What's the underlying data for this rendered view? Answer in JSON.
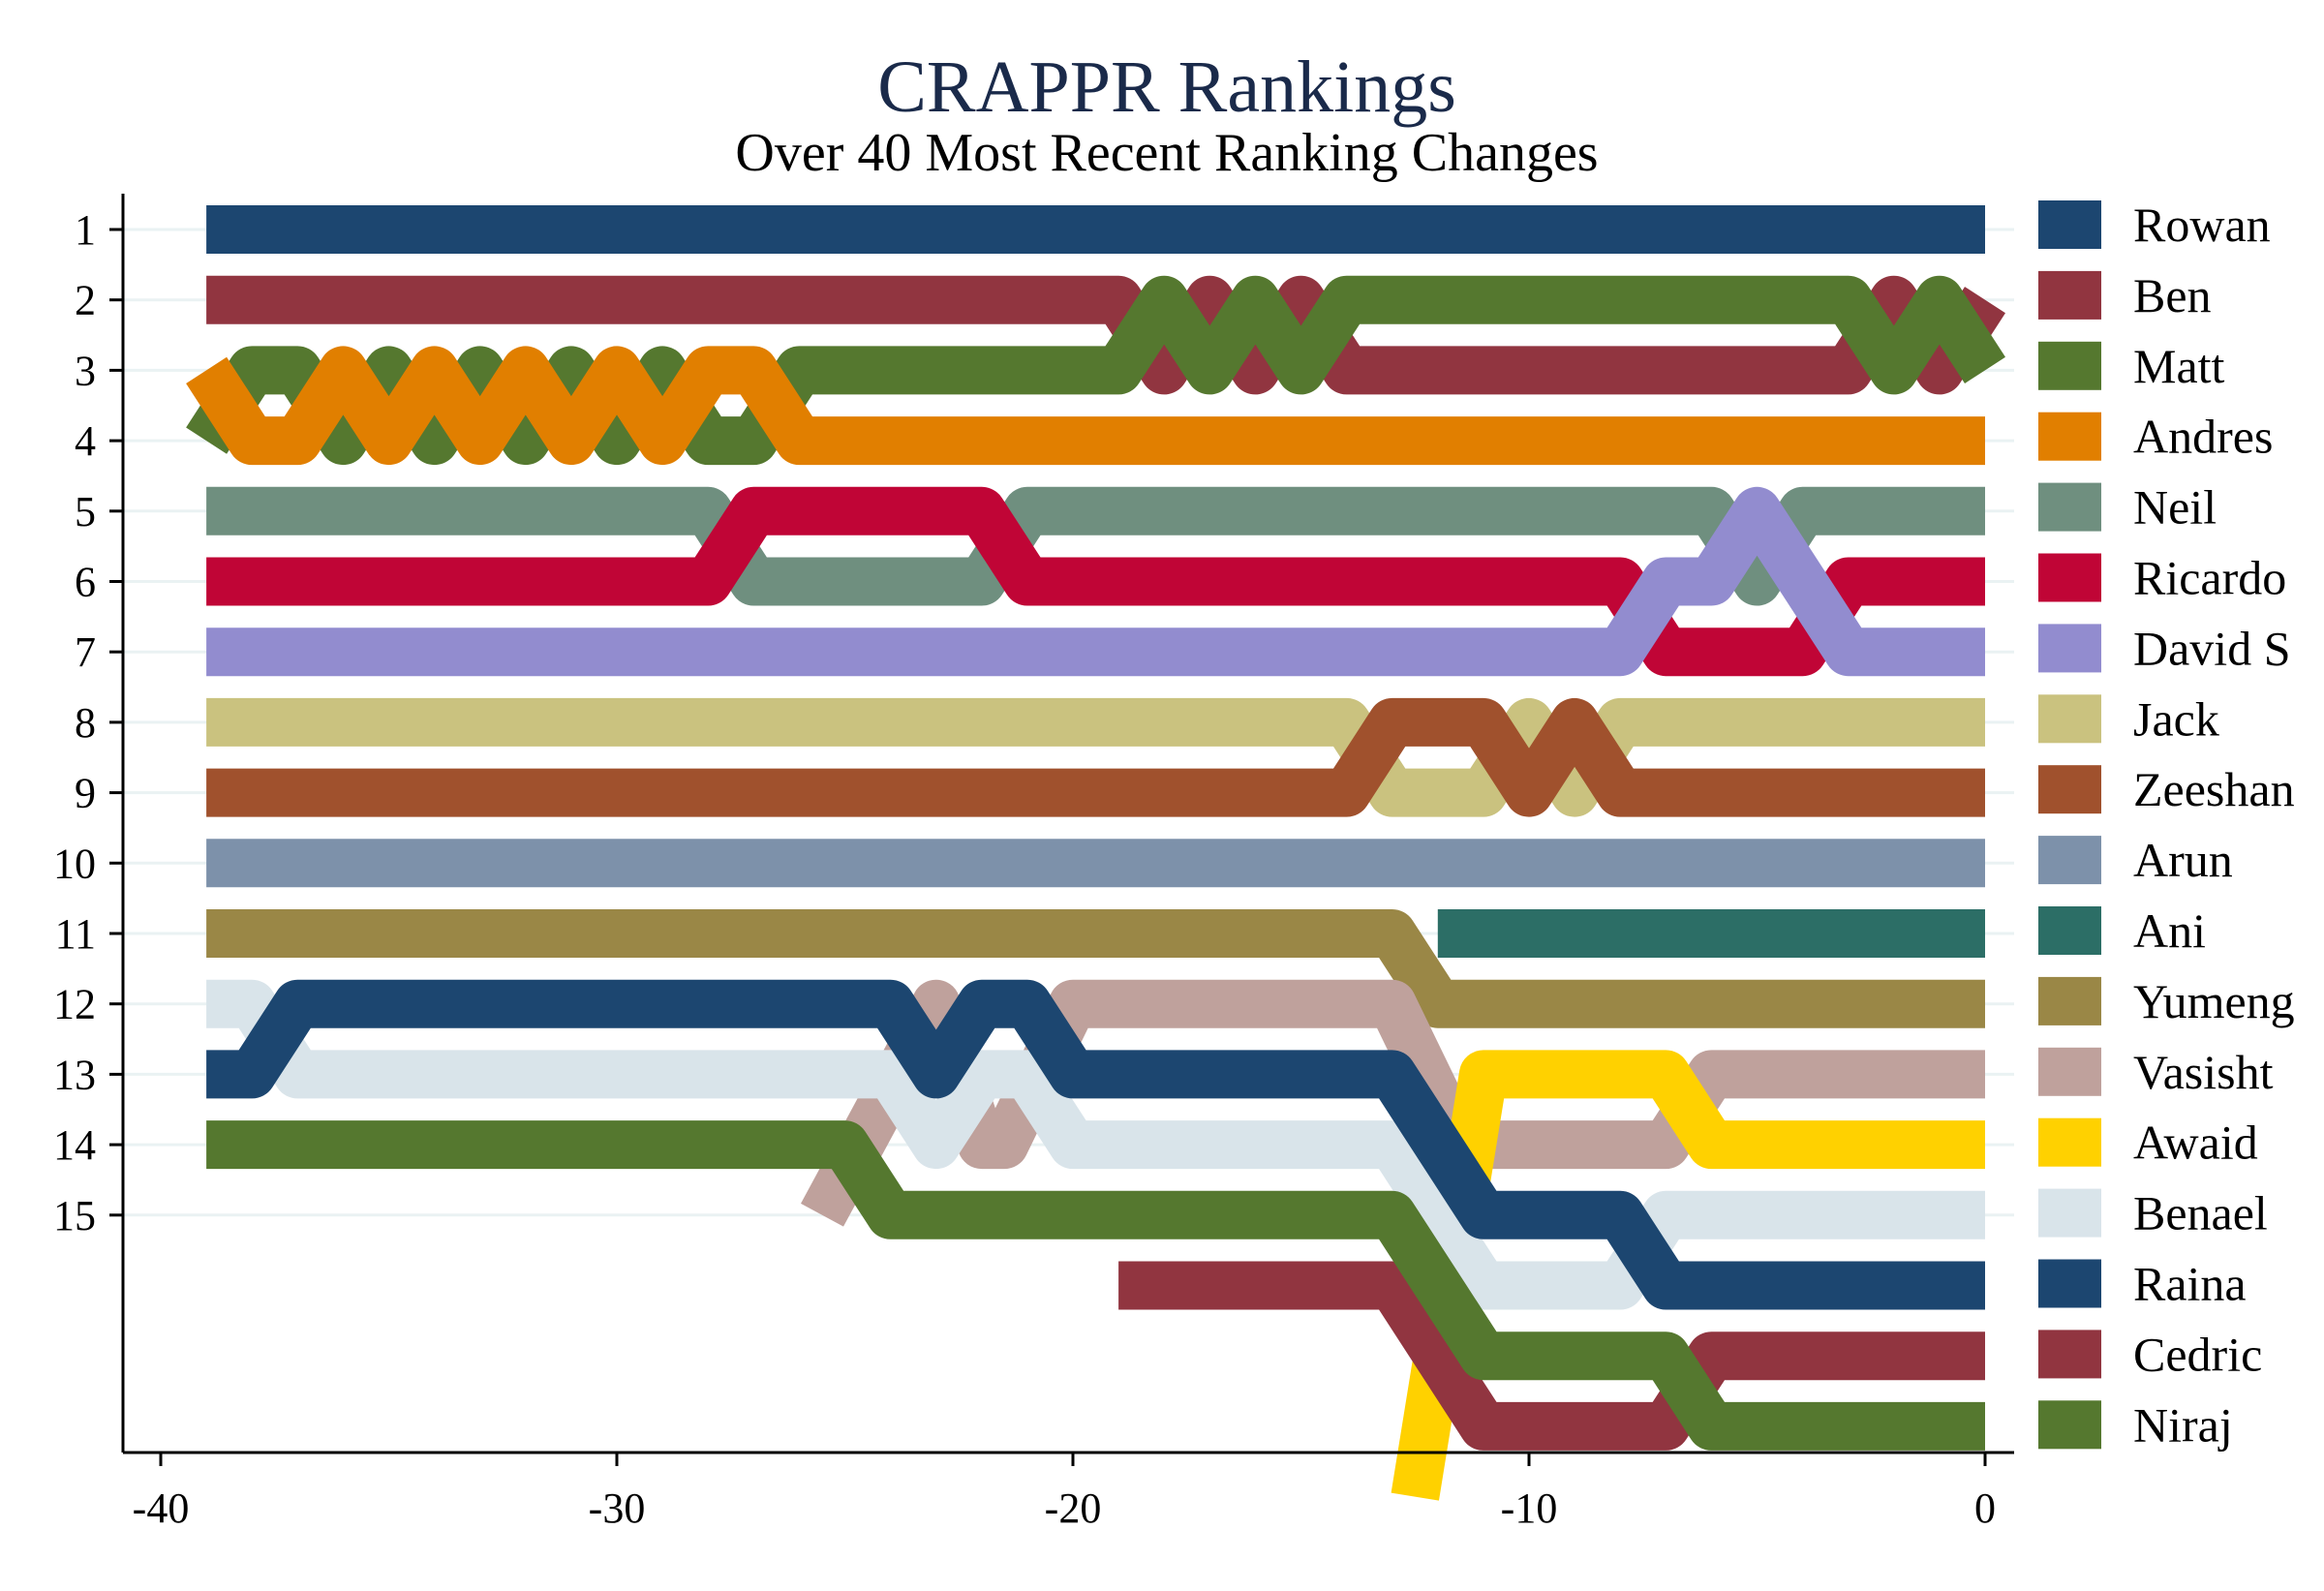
{
  "chart_data": {
    "type": "line",
    "title": "CRAPPR Rankings",
    "subtitle": "Over 40 Most Recent Ranking Changes",
    "xlabel": "",
    "ylabel": "",
    "xlim": [
      -40,
      0
    ],
    "ylim": [
      19.5,
      0.5
    ],
    "xticks": [
      -40,
      -30,
      -20,
      -10,
      0
    ],
    "yticks": [
      1,
      2,
      3,
      4,
      5,
      6,
      7,
      8,
      9,
      10,
      11,
      12,
      13,
      14,
      15
    ],
    "grid": true,
    "legend_position": "right",
    "series": [
      {
        "name": "Rowan",
        "color": "#1c4670",
        "points": [
          [
            -39,
            1
          ],
          [
            0,
            1
          ]
        ]
      },
      {
        "name": "Ben",
        "color": "#913540",
        "points": [
          [
            -39,
            2
          ],
          [
            -19,
            2
          ],
          [
            -18,
            3
          ],
          [
            -17,
            2
          ],
          [
            -16,
            3
          ],
          [
            -15,
            2
          ],
          [
            -14,
            3
          ],
          [
            -3,
            3
          ],
          [
            -2,
            2
          ],
          [
            -1,
            3
          ],
          [
            0,
            2
          ]
        ]
      },
      {
        "name": "Matt",
        "color": "#55782f",
        "points": [
          [
            -39,
            4
          ],
          [
            -38,
            3
          ],
          [
            -37,
            3
          ],
          [
            -36,
            4
          ],
          [
            -35,
            3
          ],
          [
            -34,
            4
          ],
          [
            -33,
            3
          ],
          [
            -32,
            4
          ],
          [
            -31,
            3
          ],
          [
            -30,
            4
          ],
          [
            -29,
            3
          ],
          [
            -28,
            4
          ],
          [
            -27,
            4
          ],
          [
            -26,
            3
          ],
          [
            -19,
            3
          ],
          [
            -18,
            2
          ],
          [
            -17,
            3
          ],
          [
            -16,
            2
          ],
          [
            -15,
            3
          ],
          [
            -14,
            2
          ],
          [
            -3,
            2
          ],
          [
            -2,
            3
          ],
          [
            -1,
            2
          ],
          [
            0,
            3
          ]
        ]
      },
      {
        "name": "Andres",
        "color": "#e17f00",
        "points": [
          [
            -39,
            3
          ],
          [
            -38,
            4
          ],
          [
            -37,
            4
          ],
          [
            -36,
            3
          ],
          [
            -35,
            4
          ],
          [
            -34,
            3
          ],
          [
            -33,
            4
          ],
          [
            -32,
            3
          ],
          [
            -31,
            4
          ],
          [
            -30,
            3
          ],
          [
            -29,
            4
          ],
          [
            -28,
            3
          ],
          [
            -27,
            3
          ],
          [
            -26,
            4
          ],
          [
            0,
            4
          ]
        ]
      },
      {
        "name": "Neil",
        "color": "#6f8f7f",
        "points": [
          [
            -39,
            5
          ],
          [
            -28,
            5
          ],
          [
            -27,
            6
          ],
          [
            -22,
            6
          ],
          [
            -21,
            5
          ],
          [
            -6,
            5
          ],
          [
            -5,
            6
          ],
          [
            -4,
            5
          ],
          [
            0,
            5
          ]
        ]
      },
      {
        "name": "Ricardo",
        "color": "#c00536",
        "points": [
          [
            -39,
            6
          ],
          [
            -28,
            6
          ],
          [
            -27,
            5
          ],
          [
            -22,
            5
          ],
          [
            -21,
            6
          ],
          [
            -8,
            6
          ],
          [
            -7,
            7
          ],
          [
            -4,
            7
          ],
          [
            -3,
            6
          ],
          [
            0,
            6
          ]
        ]
      },
      {
        "name": "David S",
        "color": "#928ccf",
        "points": [
          [
            -39,
            7
          ],
          [
            -8,
            7
          ],
          [
            -7,
            6
          ],
          [
            -6,
            6
          ],
          [
            -5,
            5
          ],
          [
            -4,
            6
          ],
          [
            -3,
            7
          ],
          [
            0,
            7
          ]
        ]
      },
      {
        "name": "Jack",
        "color": "#cac27f",
        "points": [
          [
            -39,
            8
          ],
          [
            -14,
            8
          ],
          [
            -13,
            9
          ],
          [
            -11,
            9
          ],
          [
            -10,
            8
          ],
          [
            -9,
            9
          ],
          [
            -8,
            8
          ],
          [
            0,
            8
          ]
        ]
      },
      {
        "name": "Zeeshan",
        "color": "#a0512d",
        "points": [
          [
            -39,
            9
          ],
          [
            -14,
            9
          ],
          [
            -13,
            8
          ],
          [
            -11,
            8
          ],
          [
            -10,
            9
          ],
          [
            -9,
            8
          ],
          [
            -8,
            9
          ],
          [
            0,
            9
          ]
        ]
      },
      {
        "name": "Arun",
        "color": "#7d91aa",
        "points": [
          [
            -39,
            10
          ],
          [
            0,
            10
          ]
        ]
      },
      {
        "name": "Ani",
        "color": "#2c6e66",
        "points": [
          [
            -12,
            11
          ],
          [
            0,
            11
          ]
        ]
      },
      {
        "name": "Yumeng",
        "color": "#9a8746",
        "points": [
          [
            -39,
            11
          ],
          [
            -13,
            11
          ],
          [
            -12,
            12
          ],
          [
            0,
            12
          ]
        ]
      },
      {
        "name": "Vasisht",
        "color": "#bfa19c",
        "points": [
          [
            -25.5,
            15
          ],
          [
            -23,
            12
          ],
          [
            -22,
            14
          ],
          [
            -21.5,
            14
          ],
          [
            -20,
            12
          ],
          [
            -13,
            12
          ],
          [
            -11.5,
            14
          ],
          [
            -7,
            14
          ],
          [
            -6,
            13
          ],
          [
            0,
            13
          ]
        ]
      },
      {
        "name": "Awaid",
        "color": "#ffd100",
        "points": [
          [
            -12.5,
            19
          ],
          [
            -11,
            13
          ],
          [
            -7,
            13
          ],
          [
            -6,
            14
          ],
          [
            0,
            14
          ]
        ]
      },
      {
        "name": "Benael",
        "color": "#d9e4ea",
        "points": [
          [
            -39,
            12
          ],
          [
            -38,
            12
          ],
          [
            -37,
            13
          ],
          [
            -24,
            13
          ],
          [
            -23,
            14
          ],
          [
            -22,
            13
          ],
          [
            -21,
            13
          ],
          [
            -20,
            14
          ],
          [
            -13,
            14
          ],
          [
            -11,
            16
          ],
          [
            -8,
            16
          ],
          [
            -7,
            15
          ],
          [
            0,
            15
          ]
        ]
      },
      {
        "name": "Raina",
        "color": "#1c4670",
        "points": [
          [
            -39,
            13
          ],
          [
            -38,
            13
          ],
          [
            -37,
            12
          ],
          [
            -24,
            12
          ],
          [
            -23,
            13
          ],
          [
            -22,
            12
          ],
          [
            -21,
            12
          ],
          [
            -20,
            13
          ],
          [
            -13,
            13
          ],
          [
            -11,
            15
          ],
          [
            -8,
            15
          ],
          [
            -7,
            16
          ],
          [
            0,
            16
          ]
        ]
      },
      {
        "name": "Cedric",
        "color": "#913540",
        "points": [
          [
            -19,
            16
          ],
          [
            -13,
            16
          ],
          [
            -11,
            18
          ],
          [
            -7,
            18
          ],
          [
            -6,
            17
          ],
          [
            0,
            17
          ]
        ]
      },
      {
        "name": "Niraj",
        "color": "#55782f",
        "points": [
          [
            -39,
            14
          ],
          [
            -25,
            14
          ],
          [
            -24,
            15
          ],
          [
            -13,
            15
          ],
          [
            -11,
            17
          ],
          [
            -7,
            17
          ],
          [
            -6,
            18
          ],
          [
            0,
            18
          ]
        ]
      }
    ]
  }
}
